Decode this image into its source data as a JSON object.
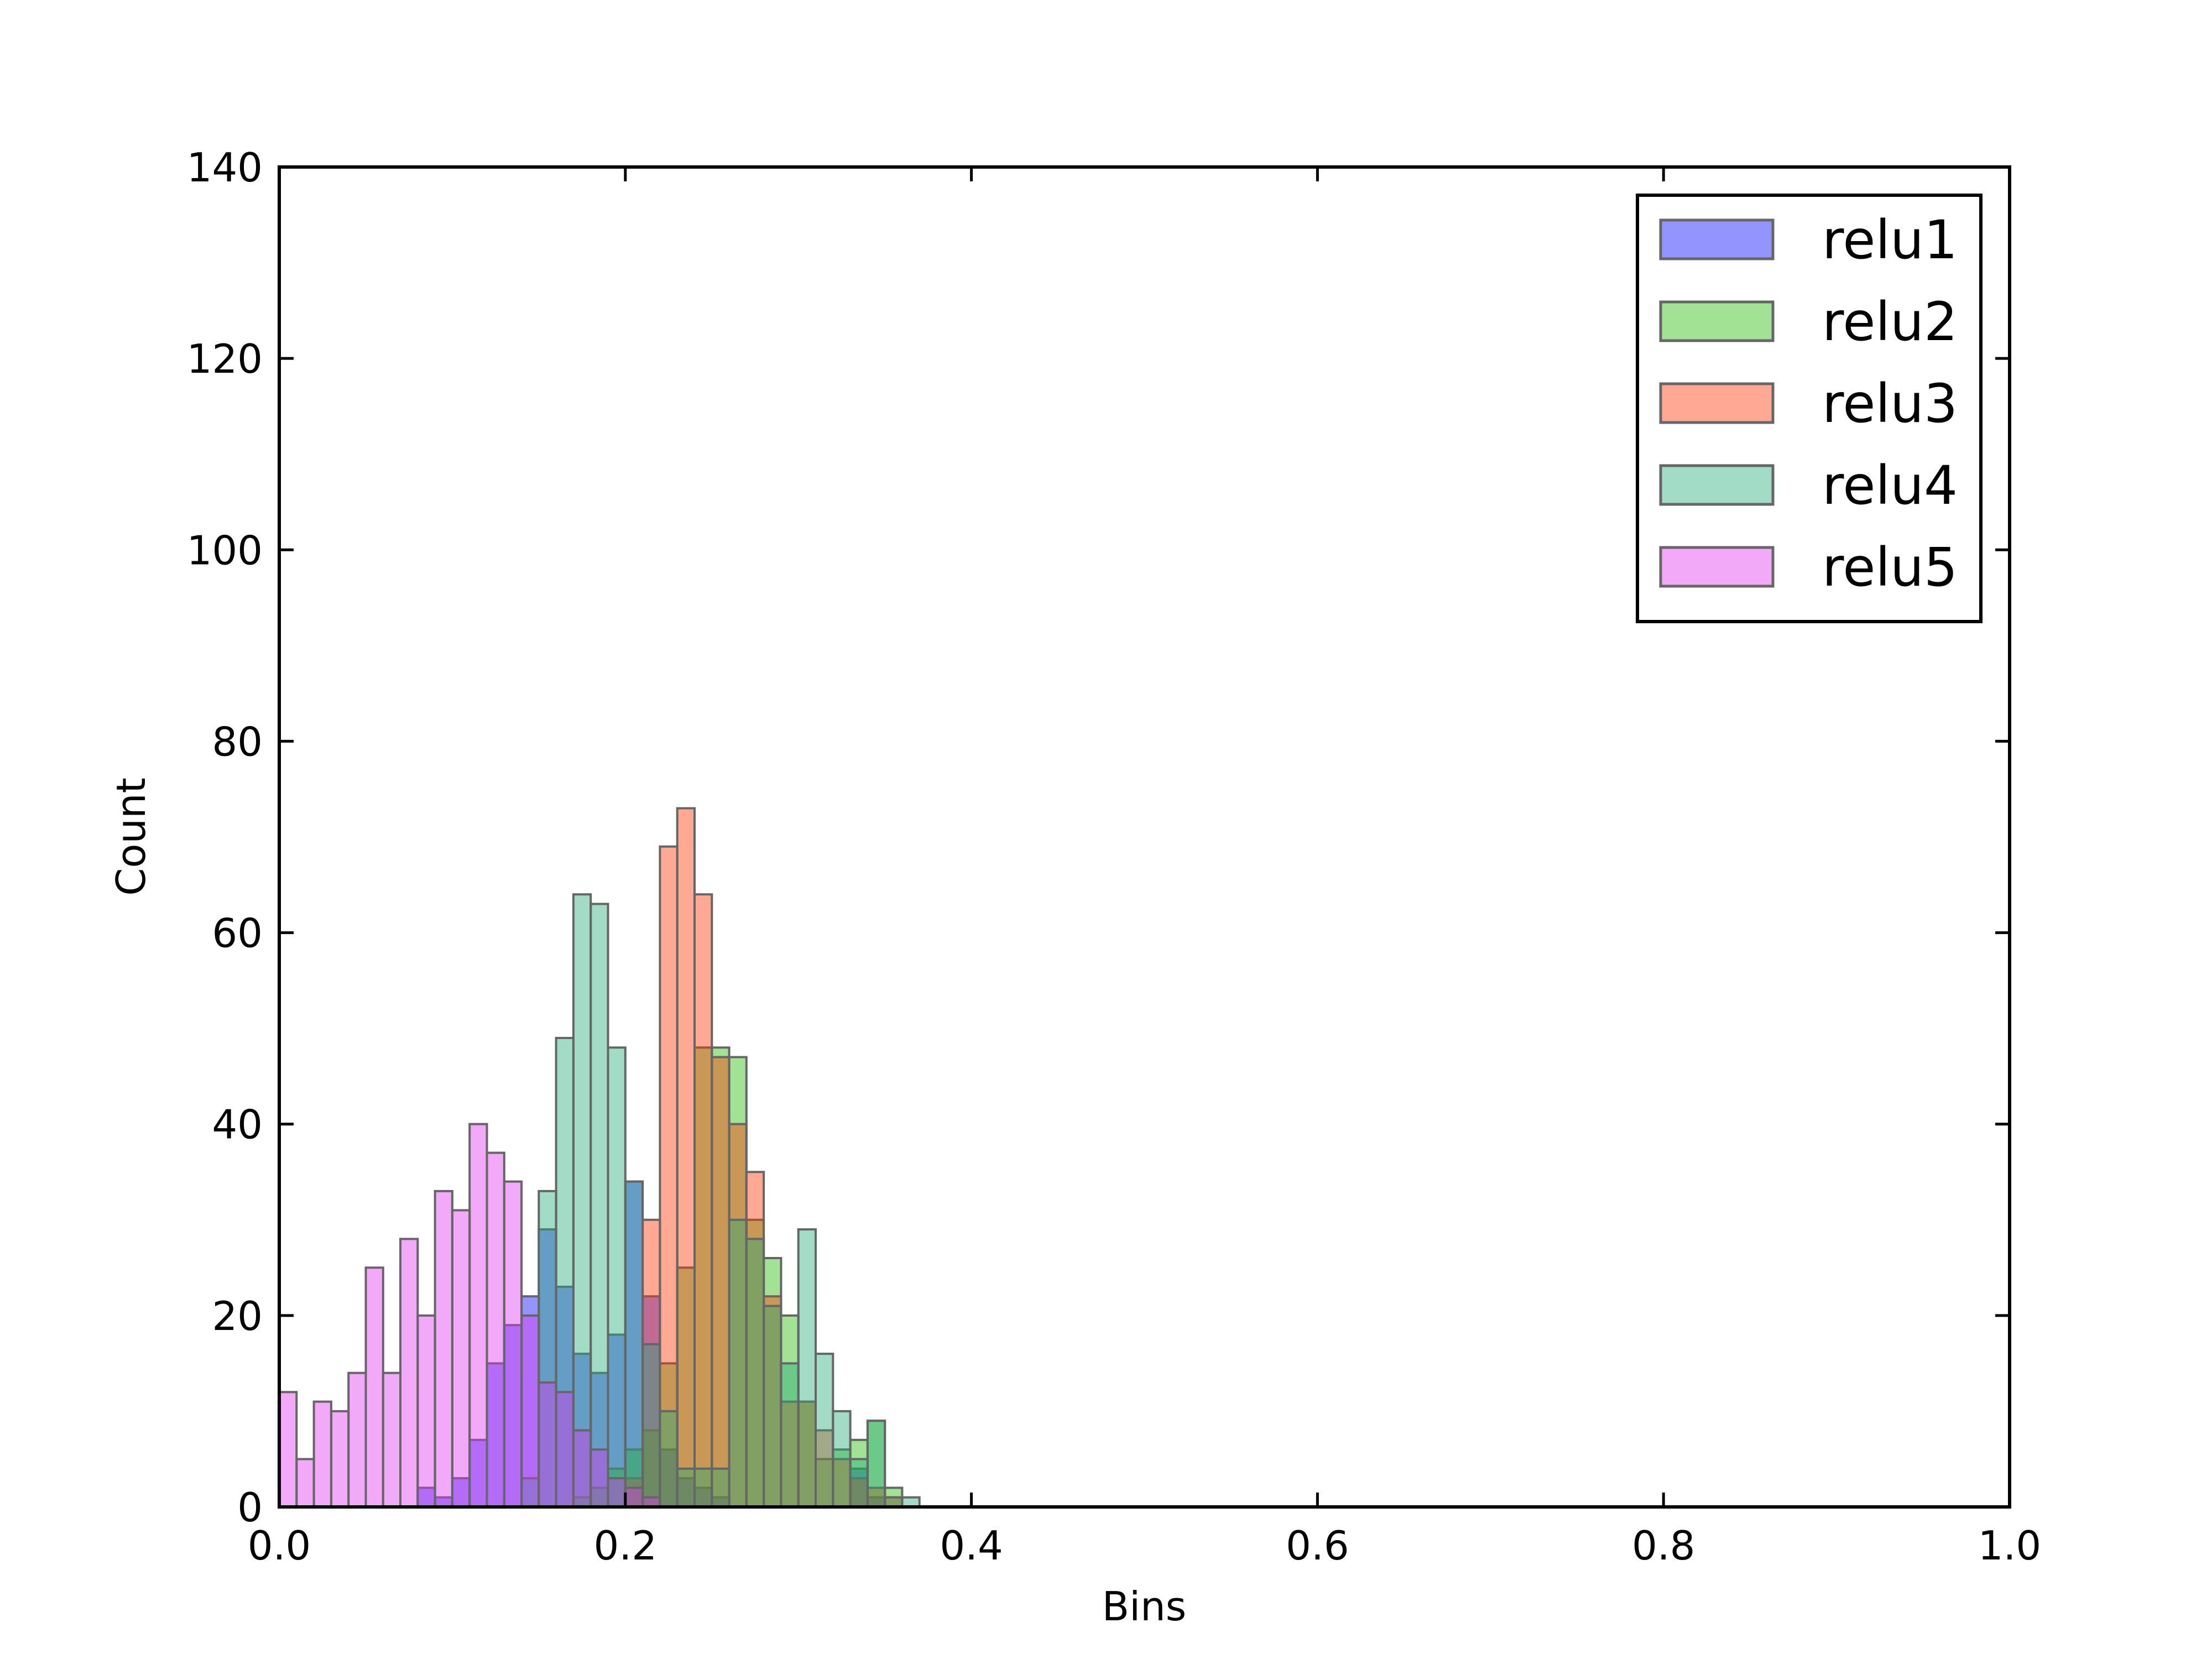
{
  "chart_data": {
    "type": "bar",
    "subtype": "overlapping-histogram",
    "title": "",
    "xlabel": "Bins",
    "ylabel": "Count",
    "xlim": [
      0.0,
      1.0
    ],
    "ylim": [
      0,
      140
    ],
    "x_ticks": [
      "0.0",
      "0.2",
      "0.4",
      "0.6",
      "0.8",
      "1.0"
    ],
    "y_ticks": [
      "0",
      "20",
      "40",
      "60",
      "80",
      "100",
      "120",
      "140"
    ],
    "bin_width": 0.01,
    "legend_position": "top-right",
    "grid": false,
    "series": [
      {
        "name": "relu1",
        "color": "#0000ff",
        "bins": [
          [
            0.08,
            2
          ],
          [
            0.09,
            1
          ],
          [
            0.1,
            3
          ],
          [
            0.11,
            7
          ],
          [
            0.12,
            15
          ],
          [
            0.13,
            19
          ],
          [
            0.14,
            22
          ],
          [
            0.15,
            29
          ],
          [
            0.16,
            23
          ],
          [
            0.17,
            16
          ],
          [
            0.18,
            14
          ],
          [
            0.19,
            18
          ],
          [
            0.2,
            34
          ],
          [
            0.21,
            22
          ],
          [
            0.22,
            6
          ],
          [
            0.23,
            3
          ],
          [
            0.24,
            2
          ],
          [
            0.25,
            1
          ],
          [
            0.33,
            4
          ],
          [
            0.34,
            1
          ]
        ]
      },
      {
        "name": "relu2",
        "color": "#22bb00",
        "bins": [
          [
            0.17,
            1
          ],
          [
            0.18,
            2
          ],
          [
            0.19,
            4
          ],
          [
            0.2,
            6
          ],
          [
            0.21,
            8
          ],
          [
            0.22,
            15
          ],
          [
            0.23,
            25
          ],
          [
            0.24,
            48
          ],
          [
            0.25,
            48
          ],
          [
            0.26,
            47
          ],
          [
            0.27,
            30
          ],
          [
            0.28,
            26
          ],
          [
            0.29,
            20
          ],
          [
            0.3,
            11
          ],
          [
            0.31,
            5
          ],
          [
            0.32,
            6
          ],
          [
            0.33,
            7
          ],
          [
            0.34,
            9
          ],
          [
            0.35,
            2
          ]
        ]
      },
      {
        "name": "relu3",
        "color": "#ff3300",
        "bins": [
          [
            0.2,
            3
          ],
          [
            0.21,
            30
          ],
          [
            0.22,
            69
          ],
          [
            0.23,
            73
          ],
          [
            0.24,
            64
          ],
          [
            0.25,
            47
          ],
          [
            0.26,
            40
          ],
          [
            0.27,
            35
          ],
          [
            0.28,
            22
          ],
          [
            0.29,
            11
          ],
          [
            0.3,
            11
          ],
          [
            0.31,
            8
          ],
          [
            0.32,
            5
          ],
          [
            0.33,
            3
          ],
          [
            0.34,
            2
          ],
          [
            0.35,
            1
          ]
        ]
      },
      {
        "name": "relu4",
        "color": "#22aa77",
        "bins": [
          [
            0.14,
            3
          ],
          [
            0.15,
            33
          ],
          [
            0.16,
            49
          ],
          [
            0.17,
            64
          ],
          [
            0.18,
            63
          ],
          [
            0.19,
            48
          ],
          [
            0.2,
            34
          ],
          [
            0.21,
            17
          ],
          [
            0.22,
            10
          ],
          [
            0.23,
            4
          ],
          [
            0.24,
            4
          ],
          [
            0.25,
            4
          ],
          [
            0.26,
            30
          ],
          [
            0.27,
            28
          ],
          [
            0.28,
            21
          ],
          [
            0.29,
            15
          ],
          [
            0.3,
            29
          ],
          [
            0.31,
            16
          ],
          [
            0.32,
            10
          ],
          [
            0.33,
            5
          ],
          [
            0.34,
            9
          ],
          [
            0.35,
            1
          ],
          [
            0.36,
            1
          ]
        ]
      },
      {
        "name": "relu5",
        "color": "#dd33ee",
        "bins": [
          [
            0.0,
            12
          ],
          [
            0.01,
            5
          ],
          [
            0.02,
            11
          ],
          [
            0.03,
            10
          ],
          [
            0.04,
            14
          ],
          [
            0.05,
            25
          ],
          [
            0.06,
            14
          ],
          [
            0.07,
            28
          ],
          [
            0.08,
            20
          ],
          [
            0.09,
            33
          ],
          [
            0.1,
            31
          ],
          [
            0.11,
            40
          ],
          [
            0.12,
            37
          ],
          [
            0.13,
            34
          ],
          [
            0.14,
            20
          ],
          [
            0.15,
            13
          ],
          [
            0.16,
            12
          ],
          [
            0.17,
            8
          ],
          [
            0.18,
            6
          ],
          [
            0.19,
            3
          ],
          [
            0.2,
            2
          ],
          [
            0.21,
            1
          ]
        ]
      }
    ]
  }
}
